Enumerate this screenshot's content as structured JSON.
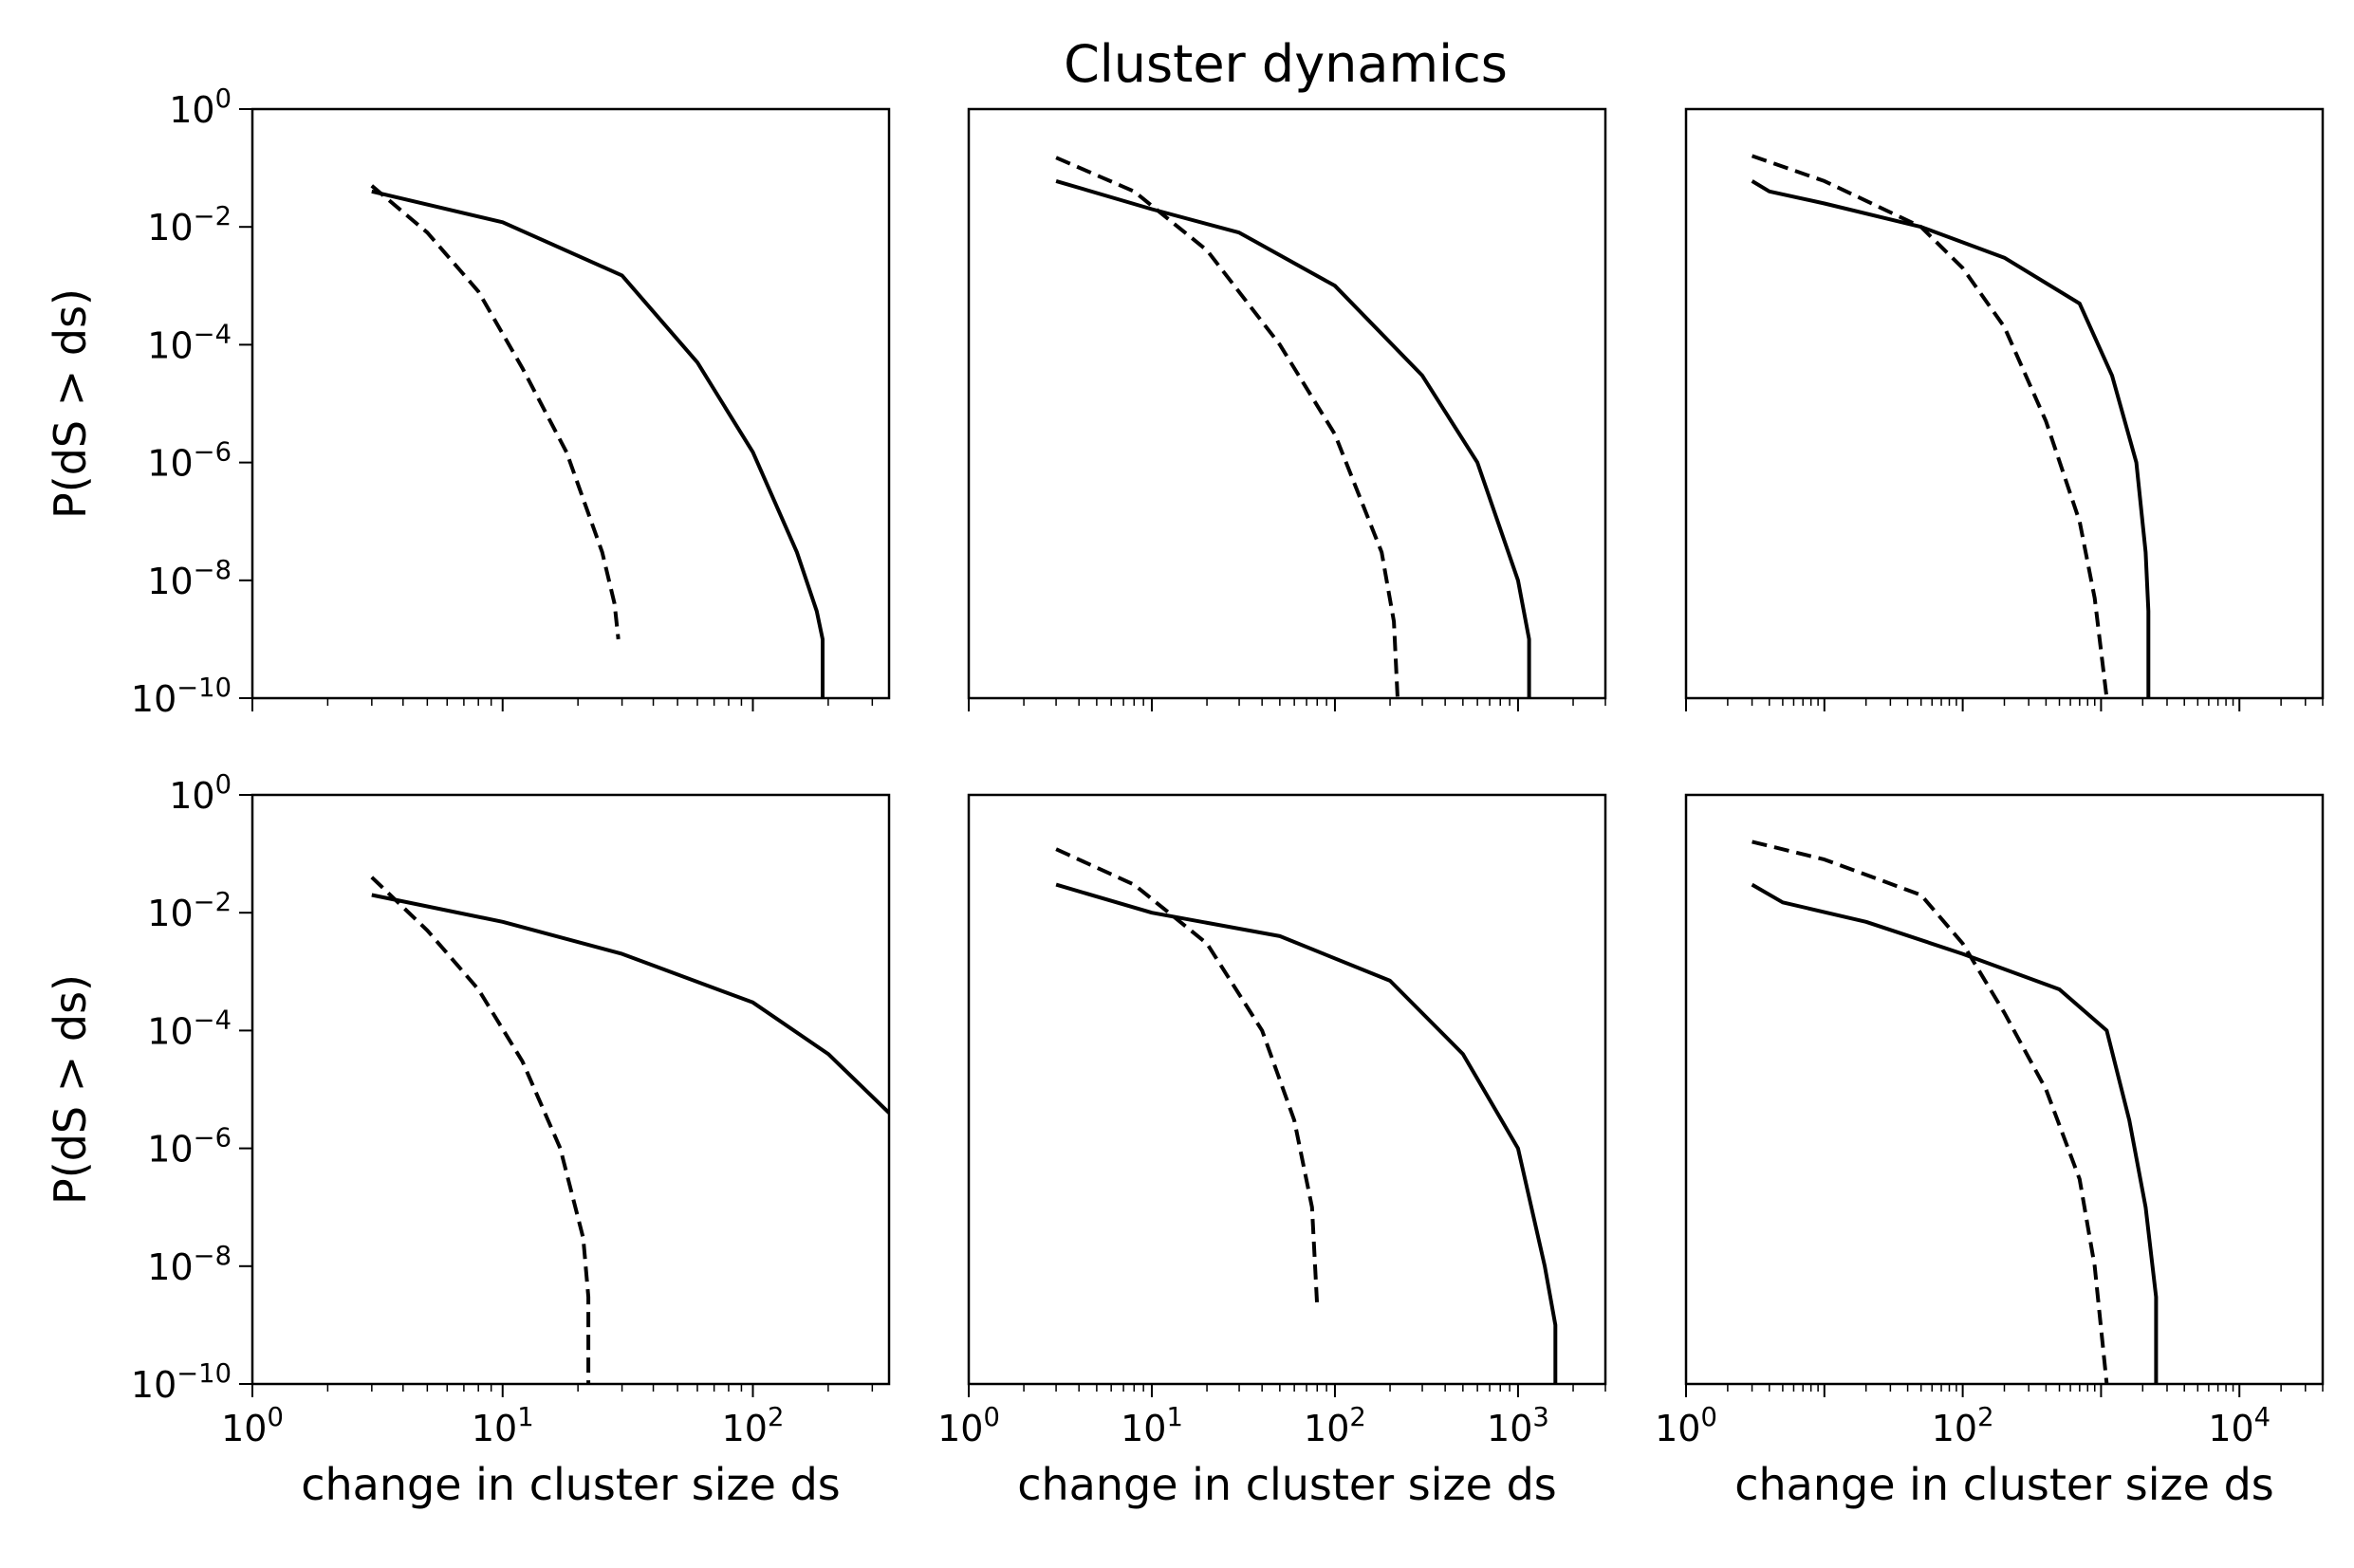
{
  "title": "Cluster dynamics",
  "chart_data": [
    {
      "type": "line",
      "row": 0,
      "col": 0,
      "xscale": "log",
      "yscale": "log",
      "xlim": [
        1,
        350
      ],
      "ylim": [
        1e-10,
        1
      ],
      "xlabel": "",
      "ylabel": "P(dS > ds)",
      "xticks": [],
      "yticks": [
        "10^0",
        "10^-2",
        "10^-4",
        "10^-6",
        "10^-8",
        "10^-10"
      ],
      "series": [
        {
          "style": "solid",
          "points": [
            [
              3,
              0.04
            ],
            [
              10,
              0.012
            ],
            [
              30,
              0.0015
            ],
            [
              60,
              5e-05
            ],
            [
              100,
              1.5e-06
            ],
            [
              150,
              3e-08
            ],
            [
              180,
              3e-09
            ],
            [
              190,
              1e-09
            ],
            [
              190,
              1e-10
            ]
          ]
        },
        {
          "style": "dashed",
          "points": [
            [
              3,
              0.05
            ],
            [
              5,
              0.008
            ],
            [
              8,
              0.0008
            ],
            [
              12,
              4e-05
            ],
            [
              18,
              1.5e-06
            ],
            [
              25,
              3e-08
            ],
            [
              28,
              4e-09
            ],
            [
              29,
              1e-09
            ]
          ]
        }
      ]
    },
    {
      "type": "line",
      "row": 0,
      "col": 1,
      "xscale": "log",
      "yscale": "log",
      "xlim": [
        1,
        3000
      ],
      "ylim": [
        1e-10,
        1
      ],
      "xlabel": "",
      "ylabel": "",
      "xticks": [],
      "yticks": [],
      "series": [
        {
          "style": "solid",
          "points": [
            [
              3,
              0.06
            ],
            [
              10,
              0.02
            ],
            [
              30,
              0.008
            ],
            [
              100,
              0.001
            ],
            [
              300,
              3e-05
            ],
            [
              600,
              1e-06
            ],
            [
              1000,
              1e-08
            ],
            [
              1150,
              1e-09
            ],
            [
              1150,
              1e-10
            ]
          ]
        },
        {
          "style": "dashed",
          "points": [
            [
              3,
              0.15
            ],
            [
              8,
              0.04
            ],
            [
              20,
              0.004
            ],
            [
              50,
              0.0001
            ],
            [
              100,
              3e-06
            ],
            [
              180,
              3e-08
            ],
            [
              210,
              2e-09
            ],
            [
              220,
              1e-10
            ]
          ]
        }
      ]
    },
    {
      "type": "line",
      "row": 0,
      "col": 2,
      "xscale": "log",
      "yscale": "log",
      "xlim": [
        1,
        40000
      ],
      "ylim": [
        1e-10,
        1
      ],
      "xlabel": "",
      "ylabel": "",
      "xticks": [],
      "yticks": [],
      "series": [
        {
          "style": "solid",
          "points": [
            [
              3,
              0.06
            ],
            [
              4,
              0.04
            ],
            [
              10,
              0.025
            ],
            [
              50,
              0.01
            ],
            [
              200,
              0.003
            ],
            [
              700,
              0.0005
            ],
            [
              1200,
              3e-05
            ],
            [
              1800,
              1e-06
            ],
            [
              2100,
              3e-08
            ],
            [
              2200,
              3e-09
            ],
            [
              2200,
              1e-10
            ]
          ]
        },
        {
          "style": "dashed",
          "points": [
            [
              3,
              0.16
            ],
            [
              10,
              0.06
            ],
            [
              50,
              0.01
            ],
            [
              100,
              0.002
            ],
            [
              200,
              0.0002
            ],
            [
              400,
              5e-06
            ],
            [
              700,
              1e-07
            ],
            [
              900,
              5e-09
            ],
            [
              1100,
              1e-10
            ]
          ]
        }
      ]
    },
    {
      "type": "line",
      "row": 1,
      "col": 0,
      "xscale": "log",
      "yscale": "log",
      "xlim": [
        1,
        350
      ],
      "ylim": [
        1e-10,
        1
      ],
      "xlabel": "change in cluster size ds",
      "ylabel": "P(dS > ds)",
      "xticks": [
        "10^0",
        "10^1",
        "10^2"
      ],
      "yticks": [
        "10^0",
        "10^-2",
        "10^-4",
        "10^-6",
        "10^-8",
        "10^-10"
      ],
      "series": [
        {
          "style": "solid",
          "points": [
            [
              3,
              0.02
            ],
            [
              10,
              0.007
            ],
            [
              30,
              0.002
            ],
            [
              100,
              0.0003
            ],
            [
              200,
              4e-05
            ],
            [
              350,
              4e-06
            ]
          ]
        },
        {
          "style": "dashed",
          "points": [
            [
              3,
              0.04
            ],
            [
              5,
              0.005
            ],
            [
              8,
              0.0005
            ],
            [
              12,
              3e-05
            ],
            [
              17,
              1e-06
            ],
            [
              21,
              3e-08
            ],
            [
              22,
              3e-09
            ],
            [
              22,
              1e-10
            ]
          ]
        }
      ]
    },
    {
      "type": "line",
      "row": 1,
      "col": 1,
      "xscale": "log",
      "yscale": "log",
      "xlim": [
        1,
        3000
      ],
      "ylim": [
        1e-10,
        1
      ],
      "xlabel": "change in cluster size ds",
      "ylabel": "",
      "xticks": [
        "10^0",
        "10^1",
        "10^2",
        "10^3"
      ],
      "yticks": [],
      "series": [
        {
          "style": "solid",
          "points": [
            [
              3,
              0.03
            ],
            [
              10,
              0.01
            ],
            [
              50,
              0.004
            ],
            [
              200,
              0.0007
            ],
            [
              500,
              4e-05
            ],
            [
              1000,
              1e-06
            ],
            [
              1400,
              1e-08
            ],
            [
              1600,
              1e-09
            ],
            [
              1600,
              1e-10
            ]
          ]
        },
        {
          "style": "dashed",
          "points": [
            [
              3,
              0.12
            ],
            [
              8,
              0.03
            ],
            [
              20,
              0.003
            ],
            [
              40,
              0.0001
            ],
            [
              60,
              3e-06
            ],
            [
              75,
              1e-07
            ],
            [
              80,
              2e-09
            ]
          ]
        }
      ]
    },
    {
      "type": "line",
      "row": 1,
      "col": 2,
      "xscale": "log",
      "yscale": "log",
      "xlim": [
        1,
        40000
      ],
      "ylim": [
        1e-10,
        1
      ],
      "xlabel": "change in cluster size ds",
      "ylabel": "",
      "xticks": [
        "10^0",
        "10^2",
        "10^4"
      ],
      "yticks": [],
      "series": [
        {
          "style": "solid",
          "points": [
            [
              3,
              0.03
            ],
            [
              5,
              0.015
            ],
            [
              20,
              0.007
            ],
            [
              100,
              0.002
            ],
            [
              500,
              0.0005
            ],
            [
              1100,
              0.0001
            ],
            [
              1600,
              3e-06
            ],
            [
              2100,
              1e-07
            ],
            [
              2500,
              3e-09
            ],
            [
              2500,
              1e-10
            ]
          ]
        },
        {
          "style": "dashed",
          "points": [
            [
              3,
              0.16
            ],
            [
              10,
              0.08
            ],
            [
              50,
              0.02
            ],
            [
              100,
              0.003
            ],
            [
              200,
              0.0002
            ],
            [
              400,
              1e-05
            ],
            [
              700,
              3e-07
            ],
            [
              900,
              1e-08
            ],
            [
              1100,
              1e-10
            ]
          ]
        }
      ]
    }
  ]
}
